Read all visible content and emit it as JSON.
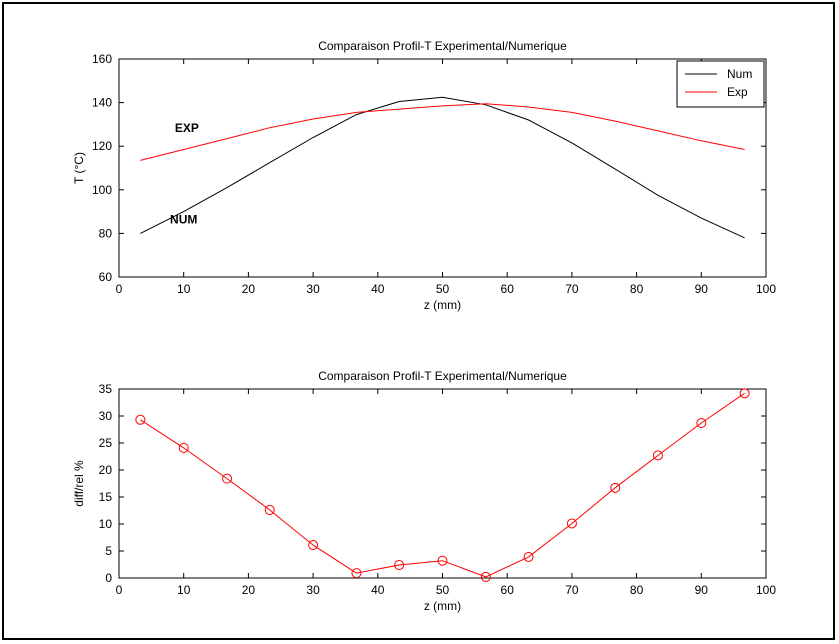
{
  "chart_data": [
    {
      "type": "line",
      "title": "Comparaison Profil-T Experimental/Numerique",
      "xlabel": "z (mm)",
      "ylabel": "T (°C)",
      "xlim": [
        0,
        100
      ],
      "ylim": [
        60,
        160
      ],
      "xticks": [
        0,
        10,
        20,
        30,
        40,
        50,
        60,
        70,
        80,
        90,
        100
      ],
      "yticks": [
        60,
        80,
        100,
        120,
        140,
        160
      ],
      "grid": false,
      "legend_position": "top-right",
      "series": [
        {
          "name": "Num",
          "color": "#000000",
          "x": [
            3.3,
            10,
            16.7,
            23.3,
            30,
            36.7,
            43.3,
            50,
            56.7,
            63.3,
            70,
            76.7,
            83.3,
            90,
            96.7
          ],
          "y": [
            80,
            90,
            101,
            112.5,
            124,
            134.5,
            140.5,
            142.5,
            139,
            132,
            121.5,
            109.5,
            97.5,
            87,
            78
          ]
        },
        {
          "name": "Exp",
          "color": "#ff0000",
          "x": [
            3.3,
            10,
            16.7,
            23.3,
            30,
            36.7,
            43.3,
            50,
            56.7,
            63.3,
            70,
            76.7,
            83.3,
            90,
            96.7
          ],
          "y": [
            113.5,
            118.5,
            123.5,
            128.5,
            132.5,
            135.5,
            137,
            138.5,
            139.5,
            138,
            135.5,
            131.5,
            127,
            122.5,
            118.5
          ]
        }
      ],
      "annotations": [
        {
          "text": "EXP",
          "x": 10.5,
          "y": 126.5
        },
        {
          "text": "NUM",
          "x": 10,
          "y": 84.5
        }
      ]
    },
    {
      "type": "line",
      "title": "Comparaison Profil-T Experimental/Numerique",
      "xlabel": "z (mm)",
      "ylabel": "diff/rel %",
      "xlim": [
        0,
        100
      ],
      "ylim": [
        0,
        35
      ],
      "xticks": [
        0,
        10,
        20,
        30,
        40,
        50,
        60,
        70,
        80,
        90,
        100
      ],
      "yticks": [
        0,
        5,
        10,
        15,
        20,
        25,
        30,
        35
      ],
      "grid": false,
      "series": [
        {
          "color": "#ff0000",
          "marker": "circle",
          "x": [
            3.3,
            10,
            16.7,
            23.3,
            30,
            36.7,
            43.3,
            50,
            56.7,
            63.3,
            70,
            76.7,
            83.3,
            90,
            96.7
          ],
          "y": [
            29.3,
            24.1,
            18.4,
            12.6,
            6.1,
            0.9,
            2.4,
            3.2,
            0.2,
            3.9,
            10.1,
            16.7,
            22.7,
            28.7,
            34.2
          ]
        }
      ]
    }
  ]
}
